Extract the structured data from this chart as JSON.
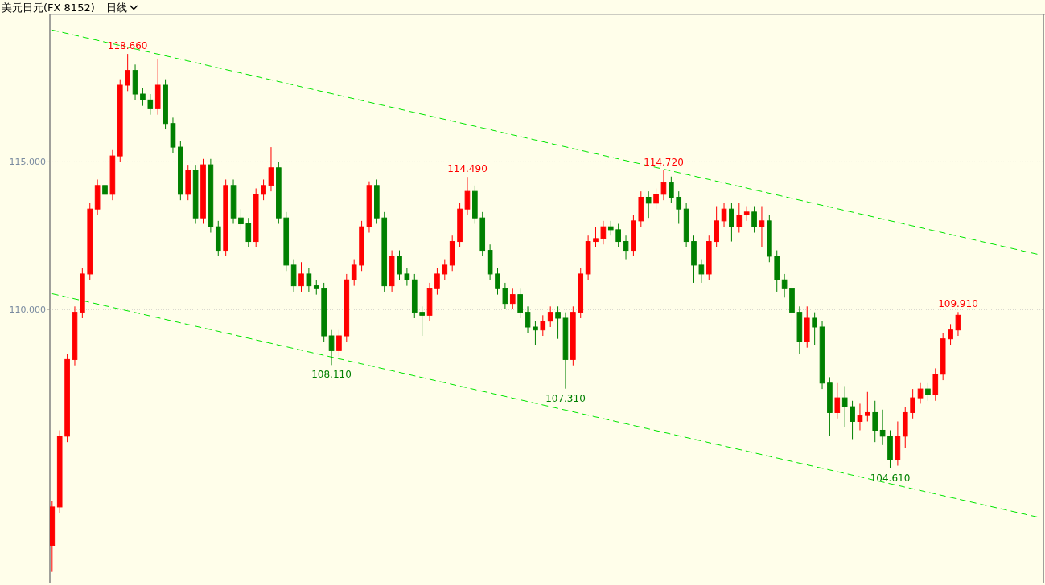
{
  "chart_data": {
    "type": "candlestick",
    "title": "美元日元(FX 8152)",
    "subtitle": "日线",
    "ylim": [
      100.71,
      119.97
    ],
    "yticks": [
      {
        "value": 110,
        "label": "110.000"
      },
      {
        "value": 115,
        "label": "115.000"
      }
    ],
    "grid": "y",
    "tick_labels": "y",
    "categories": [
      null,
      null,
      null,
      null,
      null,
      null,
      null,
      null,
      null,
      null,
      null,
      null,
      null,
      null,
      null,
      null,
      null,
      null,
      null,
      null,
      null,
      null,
      null,
      null,
      null,
      null,
      null,
      null,
      null,
      null,
      null,
      null,
      null,
      null,
      null,
      null,
      null,
      null,
      null,
      null,
      null,
      null,
      null,
      null,
      null,
      null,
      null,
      null,
      null,
      null,
      null,
      null,
      null,
      null,
      null,
      null,
      null,
      null,
      null,
      null,
      null,
      null,
      null,
      null,
      null,
      null,
      null,
      null,
      null,
      null,
      null,
      null,
      null,
      null,
      null,
      null,
      null,
      null,
      null,
      null,
      null,
      null,
      null,
      null,
      null,
      null,
      null,
      null,
      null,
      null,
      null,
      null,
      null,
      null,
      null,
      null,
      null,
      null,
      null,
      null,
      null,
      null,
      null,
      null,
      null,
      null,
      null,
      null,
      null,
      null,
      null,
      null,
      null,
      null,
      null,
      null,
      null,
      null,
      null,
      null,
      null,
      null,
      null,
      null,
      null,
      null,
      null,
      null,
      null,
      null,
      null,
      null
    ],
    "ohlc": [
      [
        102.0,
        103.5,
        101.1,
        103.3
      ],
      [
        103.3,
        105.9,
        103.1,
        105.7
      ],
      [
        105.7,
        108.5,
        105.5,
        108.3
      ],
      [
        108.3,
        110.1,
        108.1,
        109.9
      ],
      [
        109.9,
        111.4,
        109.7,
        111.2
      ],
      [
        111.2,
        113.6,
        111.0,
        113.4
      ],
      [
        113.4,
        114.4,
        113.2,
        114.2
      ],
      [
        114.2,
        114.4,
        113.7,
        113.9
      ],
      [
        113.9,
        115.4,
        113.7,
        115.2
      ],
      [
        115.2,
        117.8,
        115.0,
        117.6
      ],
      [
        117.6,
        118.66,
        117.4,
        118.1
      ],
      [
        118.1,
        118.3,
        117.1,
        117.3
      ],
      [
        117.3,
        117.5,
        116.9,
        117.1
      ],
      [
        117.1,
        117.3,
        116.6,
        116.8
      ],
      [
        116.8,
        118.5,
        116.6,
        117.6
      ],
      [
        117.6,
        117.8,
        116.1,
        116.3
      ],
      [
        116.3,
        116.5,
        115.3,
        115.5
      ],
      [
        115.5,
        115.7,
        113.7,
        113.9
      ],
      [
        113.9,
        114.9,
        113.7,
        114.7
      ],
      [
        114.7,
        114.9,
        112.9,
        113.1
      ],
      [
        113.1,
        115.1,
        112.9,
        114.9
      ],
      [
        114.9,
        115.1,
        112.6,
        112.8
      ],
      [
        112.8,
        113.0,
        111.8,
        112.0
      ],
      [
        112.0,
        114.4,
        111.8,
        114.2
      ],
      [
        114.2,
        114.4,
        112.9,
        113.1
      ],
      [
        113.1,
        113.4,
        112.7,
        112.9
      ],
      [
        112.9,
        113.1,
        112.1,
        112.3
      ],
      [
        112.3,
        114.1,
        112.1,
        113.9
      ],
      [
        113.9,
        114.4,
        113.7,
        114.2
      ],
      [
        114.2,
        115.5,
        114.0,
        114.8
      ],
      [
        114.8,
        115.0,
        112.9,
        113.1
      ],
      [
        113.1,
        113.3,
        111.3,
        111.5
      ],
      [
        111.5,
        111.7,
        110.6,
        110.8
      ],
      [
        110.8,
        111.6,
        110.6,
        111.2
      ],
      [
        111.2,
        111.4,
        110.6,
        110.8
      ],
      [
        110.8,
        111.0,
        110.5,
        110.7
      ],
      [
        110.7,
        110.9,
        108.9,
        109.1
      ],
      [
        109.1,
        109.3,
        108.11,
        108.6
      ],
      [
        108.6,
        109.3,
        108.4,
        109.1
      ],
      [
        109.1,
        111.2,
        108.9,
        111.0
      ],
      [
        111.0,
        111.7,
        110.8,
        111.5
      ],
      [
        111.5,
        113.0,
        111.3,
        112.8
      ],
      [
        112.8,
        114.34,
        112.6,
        114.2
      ],
      [
        114.2,
        114.4,
        112.9,
        113.1
      ],
      [
        113.1,
        113.3,
        110.6,
        110.8
      ],
      [
        110.8,
        112.0,
        110.6,
        111.8
      ],
      [
        111.8,
        112.0,
        111.0,
        111.2
      ],
      [
        111.2,
        111.4,
        110.8,
        111.0
      ],
      [
        111.0,
        111.2,
        109.7,
        109.9
      ],
      [
        109.9,
        110.1,
        109.1,
        109.8
      ],
      [
        109.8,
        110.9,
        109.6,
        110.7
      ],
      [
        110.7,
        111.4,
        110.5,
        111.2
      ],
      [
        111.2,
        111.7,
        111.0,
        111.5
      ],
      [
        111.5,
        112.5,
        111.3,
        112.3
      ],
      [
        112.3,
        113.6,
        112.1,
        113.4
      ],
      [
        113.4,
        114.49,
        113.2,
        114.0
      ],
      [
        114.0,
        114.2,
        112.9,
        113.1
      ],
      [
        113.1,
        113.3,
        111.8,
        112.0
      ],
      [
        112.0,
        112.2,
        111.0,
        111.2
      ],
      [
        111.2,
        111.4,
        110.5,
        110.7
      ],
      [
        110.7,
        110.9,
        110.0,
        110.2
      ],
      [
        110.2,
        110.7,
        110.0,
        110.5
      ],
      [
        110.5,
        110.7,
        109.7,
        109.9
      ],
      [
        109.9,
        110.1,
        109.2,
        109.4
      ],
      [
        109.4,
        109.6,
        108.8,
        109.3
      ],
      [
        109.3,
        109.8,
        109.1,
        109.6
      ],
      [
        109.6,
        110.1,
        109.4,
        109.9
      ],
      [
        109.9,
        110.1,
        109.0,
        109.7
      ],
      [
        109.7,
        109.9,
        107.31,
        108.3
      ],
      [
        108.3,
        110.1,
        108.1,
        109.9
      ],
      [
        109.9,
        111.4,
        109.7,
        111.2
      ],
      [
        111.2,
        112.5,
        111.0,
        112.3
      ],
      [
        112.3,
        112.8,
        112.1,
        112.4
      ],
      [
        112.4,
        113.0,
        112.2,
        112.8
      ],
      [
        112.8,
        113.0,
        112.5,
        112.7
      ],
      [
        112.7,
        112.9,
        112.1,
        112.3
      ],
      [
        112.3,
        112.5,
        111.7,
        112.0
      ],
      [
        112.0,
        113.2,
        111.8,
        113.0
      ],
      [
        113.0,
        114.0,
        112.8,
        113.8
      ],
      [
        113.8,
        114.0,
        113.1,
        113.6
      ],
      [
        113.6,
        114.1,
        113.4,
        113.9
      ],
      [
        113.9,
        114.72,
        113.7,
        114.3
      ],
      [
        114.3,
        114.5,
        113.6,
        113.8
      ],
      [
        113.8,
        114.0,
        112.9,
        113.4
      ],
      [
        113.4,
        113.6,
        112.1,
        112.3
      ],
      [
        112.3,
        112.5,
        110.9,
        111.5
      ],
      [
        111.5,
        111.7,
        110.9,
        111.2
      ],
      [
        111.2,
        112.5,
        111.0,
        112.3
      ],
      [
        112.3,
        113.5,
        112.1,
        113.0
      ],
      [
        113.0,
        113.6,
        112.8,
        113.4
      ],
      [
        113.4,
        113.6,
        112.3,
        112.8
      ],
      [
        112.8,
        113.6,
        112.6,
        113.2
      ],
      [
        113.2,
        113.5,
        113.0,
        113.3
      ],
      [
        113.3,
        113.5,
        112.6,
        112.8
      ],
      [
        112.8,
        113.5,
        112.1,
        113.0
      ],
      [
        113.0,
        113.2,
        111.6,
        111.8
      ],
      [
        111.8,
        112.0,
        110.6,
        111.0
      ],
      [
        111.0,
        111.2,
        110.4,
        110.7
      ],
      [
        110.7,
        110.9,
        109.4,
        109.9
      ],
      [
        109.9,
        110.1,
        108.5,
        108.9
      ],
      [
        108.9,
        110.1,
        108.7,
        109.7
      ],
      [
        109.7,
        109.9,
        108.8,
        109.4
      ],
      [
        109.4,
        109.6,
        107.3,
        107.5
      ],
      [
        107.5,
        107.7,
        105.7,
        106.5
      ],
      [
        106.5,
        107.5,
        106.3,
        107.0
      ],
      [
        107.0,
        107.4,
        106.0,
        106.7
      ],
      [
        106.7,
        106.9,
        105.6,
        106.2
      ],
      [
        106.2,
        106.8,
        105.9,
        106.4
      ],
      [
        106.4,
        107.2,
        106.2,
        106.5
      ],
      [
        106.5,
        106.9,
        105.5,
        105.9
      ],
      [
        105.9,
        106.6,
        105.4,
        105.7
      ],
      [
        105.7,
        105.9,
        104.61,
        104.9
      ],
      [
        104.9,
        106.2,
        104.7,
        105.7
      ],
      [
        105.7,
        106.7,
        105.3,
        106.5
      ],
      [
        106.5,
        107.3,
        106.3,
        107.0
      ],
      [
        107.0,
        107.5,
        106.8,
        107.3
      ],
      [
        107.3,
        107.5,
        106.9,
        107.1
      ],
      [
        107.1,
        108.0,
        106.9,
        107.8
      ],
      [
        107.8,
        109.2,
        107.6,
        109.0
      ],
      [
        109.0,
        109.5,
        108.8,
        109.3
      ],
      [
        109.3,
        109.91,
        109.1,
        109.8
      ],
      null,
      null,
      null,
      null,
      null,
      null,
      null,
      null,
      null,
      null,
      null
    ],
    "colors": [
      "#ff0000",
      "#ff0000",
      "#ff0000",
      "#ff0000",
      "#ff0000",
      "#ff0000",
      "#ff0000",
      "#008000",
      "#ff0000",
      "#ff0000",
      "#ff0000",
      "#008000",
      "#008000",
      "#008000",
      "#ff0000",
      "#008000",
      "#008000",
      "#008000",
      "#ff0000",
      "#008000",
      "#ff0000",
      "#008000",
      "#008000",
      "#ff0000",
      "#008000",
      "#008000",
      "#008000",
      "#ff0000",
      "#ff0000",
      "#ff0000",
      "#008000",
      "#008000",
      "#008000",
      "#ff0000",
      "#008000",
      "#008000",
      "#008000",
      "#008000",
      "#ff0000",
      "#ff0000",
      "#ff0000",
      "#ff0000",
      "#ff0000",
      "#008000",
      "#008000",
      "#ff0000",
      "#008000",
      "#008000",
      "#008000",
      "#008000",
      "#ff0000",
      "#ff0000",
      "#ff0000",
      "#ff0000",
      "#ff0000",
      "#ff0000",
      "#008000",
      "#008000",
      "#008000",
      "#008000",
      "#008000",
      "#ff0000",
      "#008000",
      "#008000",
      "#008000",
      "#ff0000",
      "#ff0000",
      "#008000",
      "#008000",
      "#ff0000",
      "#ff0000",
      "#ff0000",
      "#ff0000",
      "#ff0000",
      "#008000",
      "#008000",
      "#008000",
      "#ff0000",
      "#ff0000",
      "#008000",
      "#ff0000",
      "#ff0000",
      "#008000",
      "#008000",
      "#008000",
      "#008000",
      "#008000",
      "#ff0000",
      "#ff0000",
      "#ff0000",
      "#008000",
      "#ff0000",
      "#ff0000",
      "#008000",
      "#ff0000",
      "#008000",
      "#008000",
      "#008000",
      "#008000",
      "#008000",
      "#ff0000",
      "#008000",
      "#008000",
      "#008000",
      "#ff0000",
      "#008000",
      "#008000",
      "#ff0000",
      "#ff0000",
      "#008000",
      "#008000",
      "#008000",
      "#ff0000",
      "#ff0000",
      "#ff0000",
      "#ff0000",
      "#008000",
      "#ff0000",
      "#ff0000",
      "#ff0000",
      "#ff0000",
      null,
      null,
      null,
      null,
      null,
      null,
      null,
      null,
      null,
      null,
      null
    ],
    "series": [
      {
        "type": "line",
        "values": [
          119.47,
          null,
          null,
          null,
          null,
          null,
          null,
          null,
          null,
          null,
          null,
          null,
          null,
          null,
          null,
          null,
          null,
          null,
          null,
          null,
          null,
          null,
          null,
          null,
          null,
          null,
          null,
          null,
          null,
          null,
          null,
          null,
          null,
          null,
          null,
          null,
          null,
          null,
          null,
          null,
          null,
          null,
          null,
          null,
          null,
          null,
          null,
          null,
          null,
          null,
          null,
          null,
          null,
          null,
          null,
          null,
          null,
          null,
          null,
          null,
          null,
          null,
          null,
          null,
          null,
          null,
          null,
          null,
          null,
          null,
          null,
          null,
          null,
          null,
          null,
          null,
          null,
          null,
          null,
          null,
          null,
          null,
          null,
          null,
          null,
          null,
          null,
          null,
          null,
          null,
          null,
          null,
          null,
          null,
          null,
          null,
          null,
          null,
          null,
          null,
          null,
          null,
          null,
          null,
          null,
          null,
          null,
          null,
          null,
          null,
          null,
          null,
          null,
          null,
          null,
          null,
          null,
          null,
          null,
          null,
          null,
          null,
          null,
          null,
          null,
          null,
          null,
          null,
          null,
          null,
          null,
          111.84
        ],
        "color": "#00e600",
        "line_style": "dashed"
      },
      {
        "type": "line",
        "values": [
          110.53,
          null,
          null,
          null,
          null,
          null,
          null,
          null,
          null,
          null,
          null,
          null,
          null,
          null,
          null,
          null,
          null,
          null,
          null,
          null,
          null,
          null,
          null,
          null,
          null,
          null,
          null,
          null,
          null,
          null,
          null,
          null,
          null,
          null,
          null,
          null,
          null,
          null,
          null,
          null,
          null,
          null,
          null,
          null,
          null,
          null,
          null,
          null,
          null,
          null,
          null,
          null,
          null,
          null,
          null,
          null,
          null,
          null,
          null,
          null,
          null,
          null,
          null,
          null,
          null,
          null,
          null,
          null,
          null,
          null,
          null,
          null,
          null,
          null,
          null,
          null,
          null,
          null,
          null,
          null,
          null,
          null,
          null,
          null,
          null,
          null,
          null,
          null,
          null,
          null,
          null,
          null,
          null,
          null,
          null,
          null,
          null,
          null,
          null,
          null,
          null,
          null,
          null,
          null,
          null,
          null,
          null,
          null,
          null,
          null,
          null,
          null,
          null,
          null,
          null,
          null,
          null,
          null,
          null,
          null,
          null,
          null,
          null,
          null,
          null,
          null,
          null,
          null,
          null,
          null,
          null,
          102.93
        ],
        "color": "#00e600",
        "line_style": "dashed"
      }
    ],
    "annotations": [
      {
        "text": "118.660",
        "y": 118.66
      },
      {
        "text": "108.110",
        "y": 108.11
      },
      {
        "text": "114.490",
        "y": 114.49
      },
      {
        "text": "107.310",
        "y": 107.31
      },
      {
        "text": "114.720",
        "y": 114.72
      },
      {
        "text": "104.610",
        "y": 104.61
      },
      {
        "text": "109.910",
        "y": 109.91
      }
    ]
  }
}
